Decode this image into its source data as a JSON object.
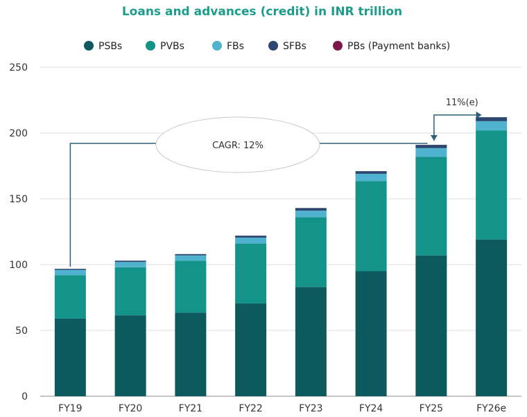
{
  "chart_data": {
    "type": "bar",
    "stacked": true,
    "title": "Loans and advances (credit) in INR trillion",
    "categories": [
      "FY19",
      "FY20",
      "FY21",
      "FY22",
      "FY23",
      "FY24",
      "FY25",
      "FY26e"
    ],
    "series": [
      {
        "name": "PSBs",
        "color": "#0c5a5e",
        "values": [
          59,
          61.5,
          63.5,
          70.5,
          83,
          95,
          107,
          119
        ]
      },
      {
        "name": "PVBs",
        "color": "#13938a",
        "values": [
          33,
          36.5,
          39.5,
          45.5,
          53,
          68.5,
          75,
          83
        ]
      },
      {
        "name": "FBs",
        "color": "#4fb3cf",
        "values": [
          4,
          4,
          4,
          4.5,
          5,
          5.5,
          6.5,
          7
        ]
      },
      {
        "name": "SFBs",
        "color": "#2c4670",
        "values": [
          0.8,
          1,
          1,
          1.5,
          2,
          2,
          2.5,
          3
        ]
      },
      {
        "name": "PBs (Payment banks)",
        "color": "#7b1a4a",
        "values": [
          0,
          0,
          0,
          0,
          0,
          0,
          0,
          0
        ]
      }
    ],
    "ylim": [
      0,
      250
    ],
    "yticks": [
      0,
      50,
      100,
      150,
      200,
      250
    ],
    "grid": true,
    "legend": "top",
    "annotations": {
      "cagr_label": "CAGR: 12%",
      "growth_label": "11%(e)"
    }
  }
}
